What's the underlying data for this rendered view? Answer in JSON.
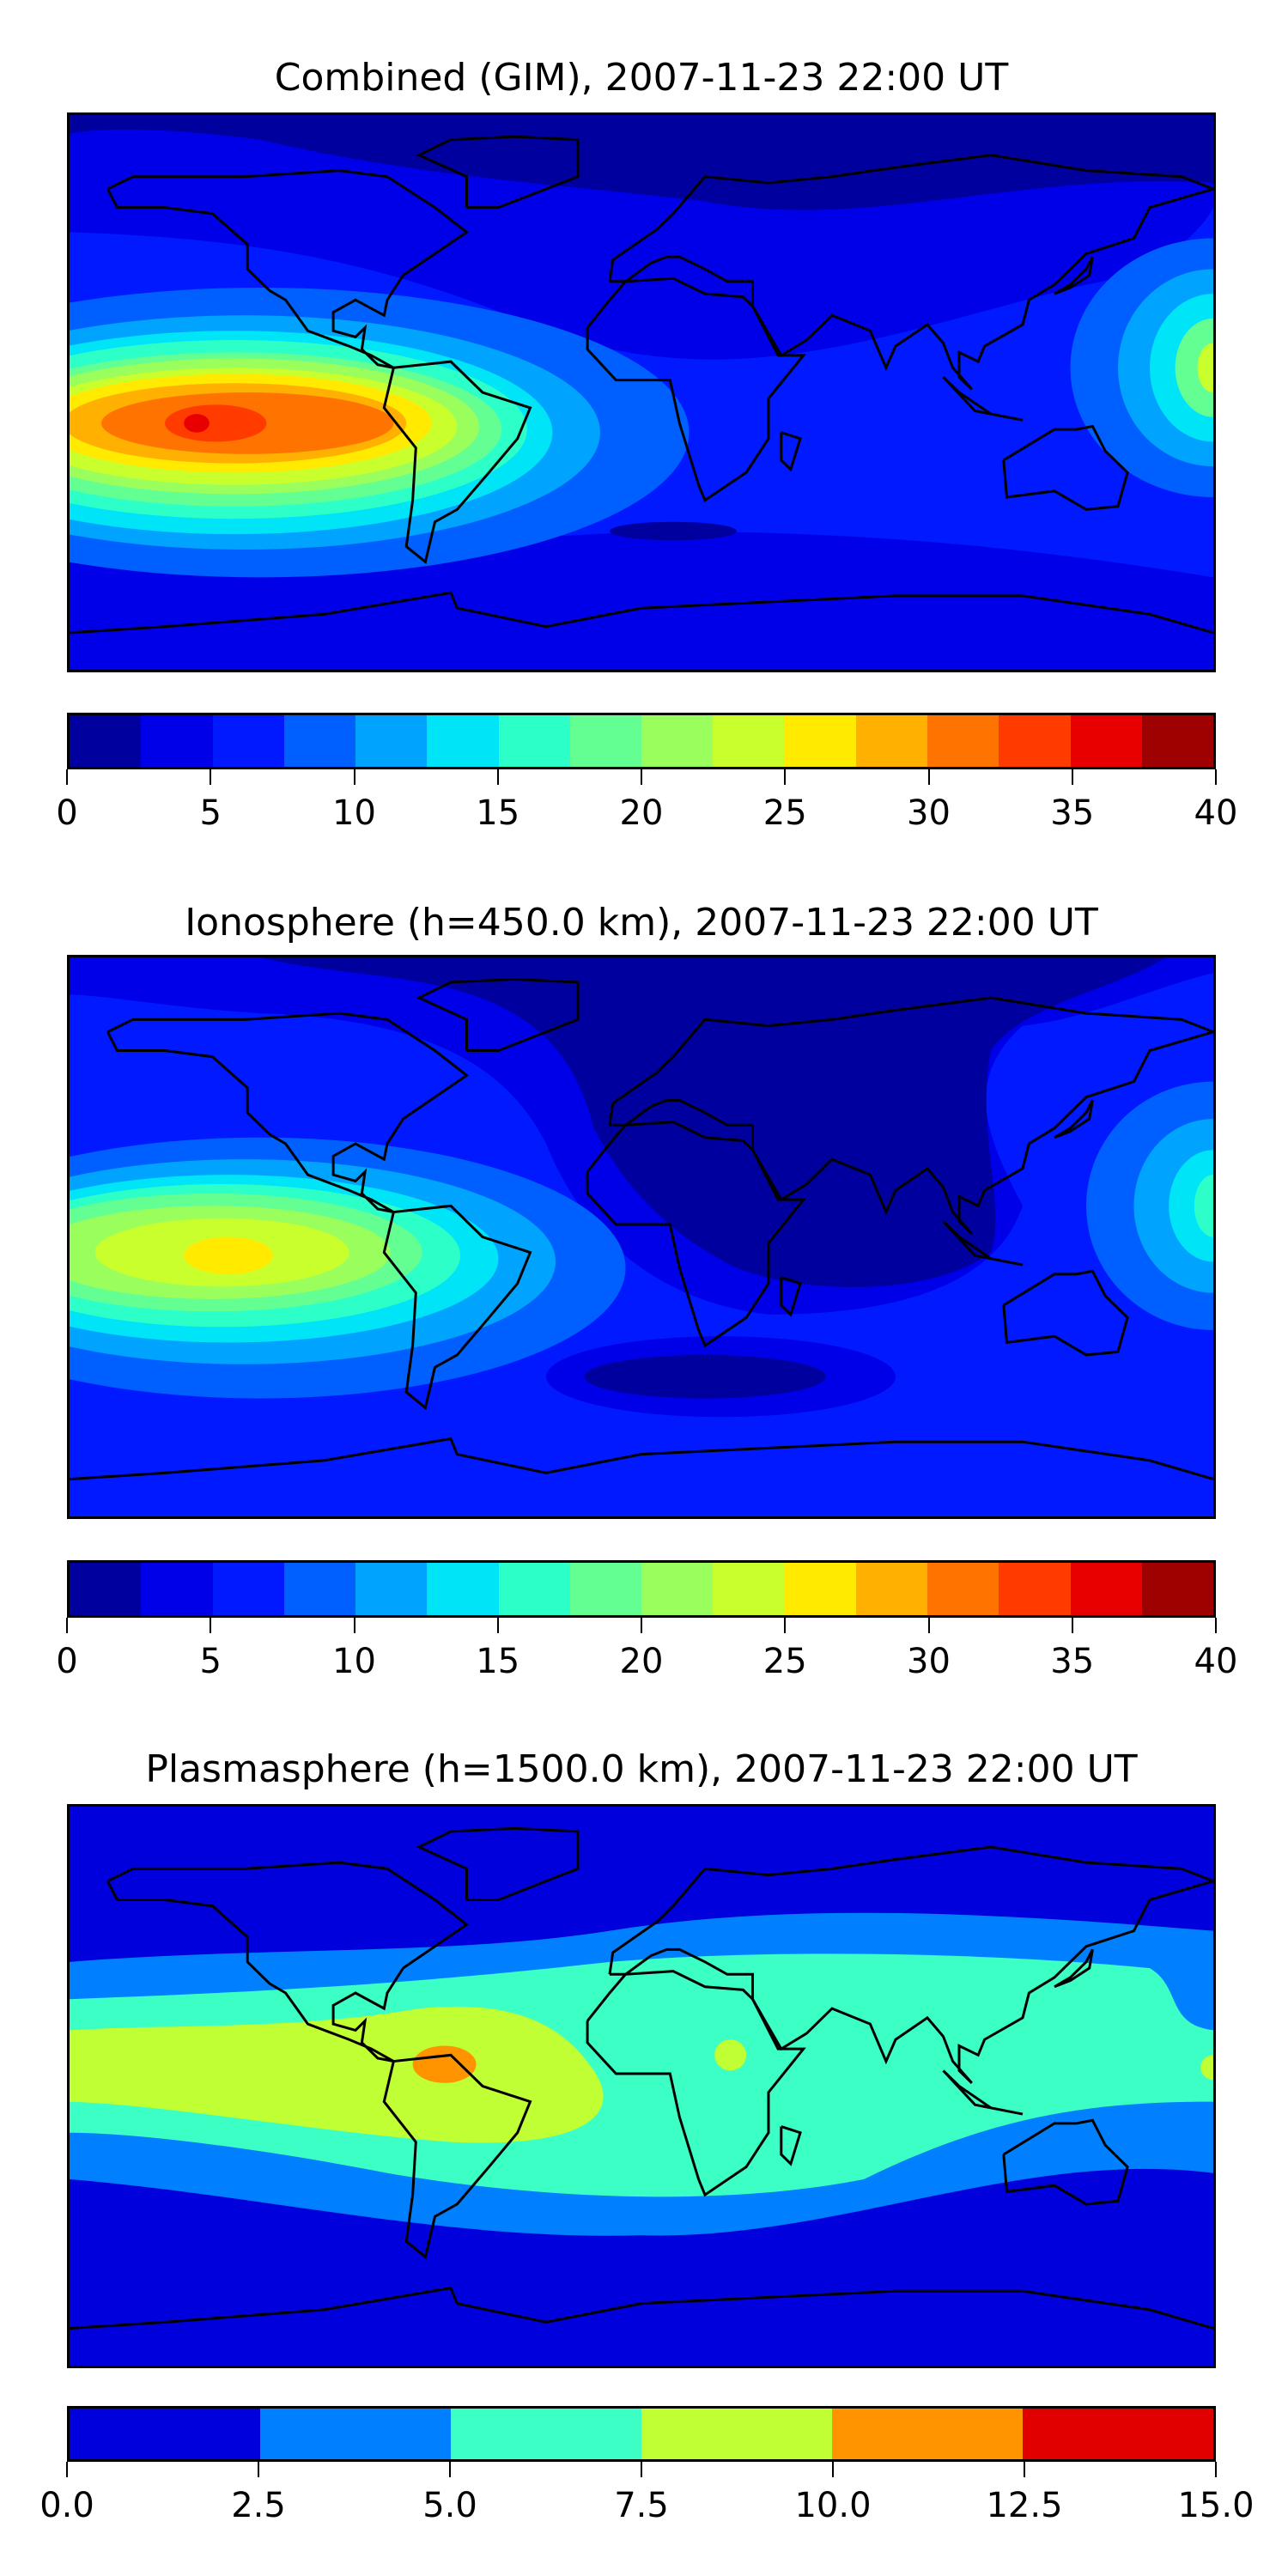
{
  "chart_data": [
    {
      "type": "heatmap",
      "title": "Combined (GIM), 2007-11-23 22:00 UT",
      "projection": "equirectangular, lon -180..180, lat -90..90",
      "colorbar": {
        "ticks": [
          "0",
          "5",
          "10",
          "15",
          "20",
          "25",
          "30",
          "35",
          "40"
        ],
        "range": [
          0,
          40
        ],
        "step": 2.5,
        "colors": [
          "#00009f",
          "#0000e8",
          "#0019ff",
          "#0060ff",
          "#00a4ff",
          "#00e4f8",
          "#2dffc9",
          "#63ff93",
          "#9aff5d",
          "#c9ff2d",
          "#ffea00",
          "#ffb000",
          "#ff7300",
          "#ff3b00",
          "#e80000",
          "#9f0000"
        ]
      },
      "peak": {
        "lon": -140,
        "lat": -10,
        "value_range": [
          35,
          37.5
        ]
      }
    },
    {
      "type": "heatmap",
      "title": "Ionosphere  (h=450.0 km), 2007-11-23 22:00 UT",
      "projection": "equirectangular, lon -180..180, lat -90..90",
      "colorbar": {
        "ticks": [
          "0",
          "5",
          "10",
          "15",
          "20",
          "25",
          "30",
          "35",
          "40"
        ],
        "range": [
          0,
          40
        ],
        "step": 2.5,
        "colors": [
          "#00009f",
          "#0000e8",
          "#0019ff",
          "#0060ff",
          "#00a4ff",
          "#00e4f8",
          "#2dffc9",
          "#63ff93",
          "#9aff5d",
          "#c9ff2d",
          "#ffea00",
          "#ffb000",
          "#ff7300",
          "#ff3b00",
          "#e80000",
          "#9f0000"
        ]
      },
      "peak": {
        "lon": -130,
        "lat": -12,
        "value_range": [
          25,
          27.5
        ]
      }
    },
    {
      "type": "heatmap",
      "title": "Plasmasphere (h=1500.0 km), 2007-11-23 22:00 UT",
      "projection": "equirectangular, lon -180..180, lat -90..90",
      "colorbar": {
        "ticks": [
          "0.0",
          "2.5",
          "5.0",
          "7.5",
          "10.0",
          "12.5",
          "15.0"
        ],
        "range": [
          0,
          15
        ],
        "step": 2.5,
        "colors": [
          "#0000dc",
          "#0080ff",
          "#3bffc4",
          "#c0ff33",
          "#ff9400",
          "#e00000"
        ]
      },
      "peak": {
        "lon": -62,
        "lat": -5,
        "value_range": [
          10,
          12.5
        ]
      }
    }
  ]
}
